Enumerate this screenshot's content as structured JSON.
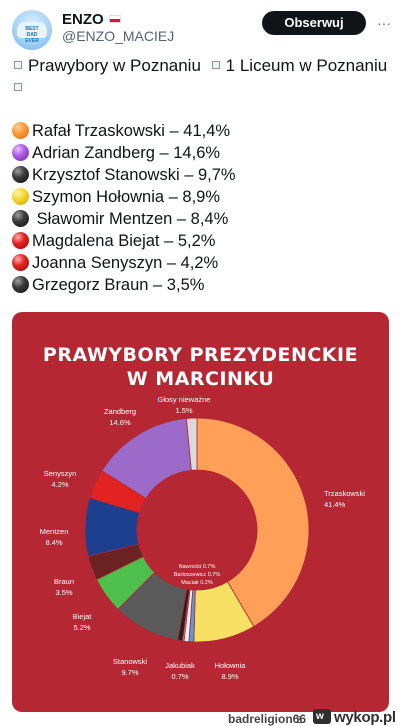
{
  "post": {
    "author_name": "ENZO",
    "author_handle": "@ENZO_MACIEJ",
    "avatar_caption": "BEST DAD EVER",
    "follow_label": "Obserwuj",
    "more_label": "···",
    "text_line1_a": "Prawybory w Poznaniu",
    "text_line1_b": "1  Liceum w Poznaniu"
  },
  "results": [
    {
      "label": "Rafał Trzaskowski – 41,4%",
      "ball": "orange"
    },
    {
      "label": "Adrian Zandberg – 14,6%",
      "ball": "purple"
    },
    {
      "label": "Krzysztof Stanowski – 9,7%",
      "ball": "black"
    },
    {
      "label": "Szymon Hołownia – 8,9%",
      "ball": "yellow"
    },
    {
      "label": " Sławomir Mentzen – 8,4%",
      "ball": "black"
    },
    {
      "label": "Magdalena Biejat – 5,2%",
      "ball": "red"
    },
    {
      "label": "Joanna Senyszyn – 4,2%",
      "ball": "red"
    },
    {
      "label": "Grzegorz Braun – 3,5%",
      "ball": "black"
    }
  ],
  "graphic": {
    "title_line1": "PRAWYBORY PREZYDENCKIE",
    "title_line2": "W MARCINKU",
    "background_color": "#b42733"
  },
  "chart_data": {
    "type": "pie",
    "style": "donut",
    "start_angle_deg": 0,
    "direction": "clockwise",
    "slices": [
      {
        "name": "Trzaskowski",
        "value_label": "41.4%",
        "value": 41.4,
        "color": "#ff9f58"
      },
      {
        "name": "Hołownia",
        "value_label": "8.9%",
        "value": 8.9,
        "color": "#f7e063"
      },
      {
        "name": "Nawrocki",
        "value_label": "0.7%",
        "value": 0.7,
        "color": "#5b9bd5"
      },
      {
        "name": "Jakubiak",
        "value_label": "0.7%",
        "value": 0.7,
        "color": "#f0f0f0"
      },
      {
        "name": "Maciak",
        "value_label": "0.2%",
        "value": 0.2,
        "color": "#a3c8e8"
      },
      {
        "name": "Bartoszewicz",
        "value_label": "0.7%",
        "value": 0.7,
        "color": "#222222"
      },
      {
        "name": "Stanowski",
        "value_label": "9.7%",
        "value": 9.7,
        "color": "#5a5a5a"
      },
      {
        "name": "Biejat",
        "value_label": "5.2%",
        "value": 5.2,
        "color": "#4cbf4c"
      },
      {
        "name": "Braun",
        "value_label": "3.5%",
        "value": 3.5,
        "color": "#6b2222"
      },
      {
        "name": "Mentzen",
        "value_label": "8.4%",
        "value": 8.4,
        "color": "#1d3f8f"
      },
      {
        "name": "Senyszyn",
        "value_label": "4.2%",
        "value": 4.2,
        "color": "#e32222"
      },
      {
        "name": "Zandberg",
        "value_label": "14.6%",
        "value": 14.6,
        "color": "#9c6ac9"
      },
      {
        "name": "Głosy nieważne",
        "value_label": "1.5%",
        "value": 1.5,
        "color": "#d9d9d9"
      }
    ],
    "center_labels": [
      "Nawrocki 0.7%",
      "Bartoszewicz 0.7%",
      "Maciak 0.2%"
    ]
  },
  "footer": {
    "username": "badreligion66",
    "separator": "z",
    "site": "wykop.pl"
  }
}
